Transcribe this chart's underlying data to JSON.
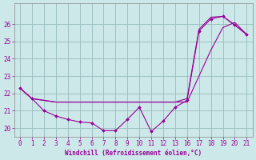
{
  "xlabel": "Windchill (Refroidissement éolien,°C)",
  "bg_color": "#cce8e8",
  "grid_color": "#99bbbb",
  "line_color": "#990099",
  "xlim": [
    -0.5,
    21.5
  ],
  "ylim": [
    19.5,
    27.2
  ],
  "yticks": [
    20,
    21,
    22,
    23,
    24,
    25,
    26
  ],
  "xticks": [
    0,
    1,
    2,
    3,
    4,
    5,
    6,
    7,
    8,
    9,
    10,
    11,
    12,
    13,
    16,
    17,
    18,
    19,
    20,
    21
  ],
  "line1_x": [
    0,
    1,
    2,
    3,
    4,
    5,
    6,
    7,
    8,
    9,
    10,
    11,
    12,
    13,
    16,
    17,
    18,
    19,
    20,
    21
  ],
  "line1_y": [
    22.3,
    21.7,
    21.0,
    20.7,
    20.5,
    20.35,
    20.3,
    19.85,
    19.85,
    20.5,
    21.2,
    19.8,
    20.4,
    21.2,
    21.6,
    25.6,
    26.3,
    26.45,
    25.95,
    25.4
  ],
  "line2_x": [
    0,
    1,
    3,
    13,
    16,
    17,
    18,
    19,
    20,
    21
  ],
  "line2_y": [
    22.3,
    21.7,
    21.5,
    21.5,
    21.7,
    25.7,
    26.4,
    26.45,
    25.95,
    25.4
  ],
  "line3_x": [
    0,
    1,
    3,
    13,
    16,
    17,
    18,
    19,
    20,
    21
  ],
  "line3_y": [
    22.3,
    21.7,
    21.5,
    21.5,
    21.5,
    23.0,
    24.5,
    25.8,
    26.1,
    25.4
  ]
}
